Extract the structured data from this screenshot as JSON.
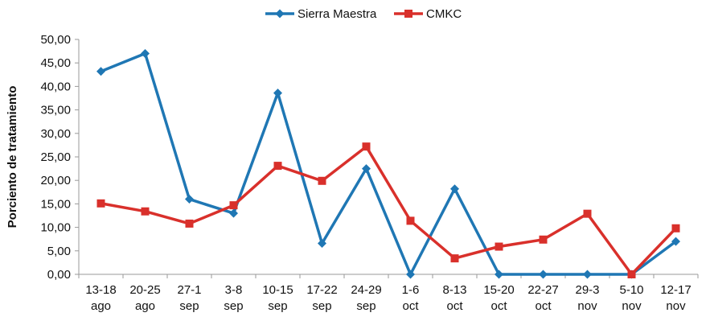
{
  "chart_data": {
    "type": "line",
    "title": "",
    "xlabel": "",
    "ylabel": "Porciento de tratamiento",
    "ylim": [
      0,
      50
    ],
    "ytick_step": 5,
    "ytick_labels": [
      "0,00",
      "5,00",
      "10,00",
      "15,00",
      "20,00",
      "25,00",
      "30,00",
      "35,00",
      "40,00",
      "45,00",
      "50,00"
    ],
    "grid": false,
    "legend_position": "top-center",
    "categories": [
      [
        "13-18",
        "ago"
      ],
      [
        "20-25",
        "ago"
      ],
      [
        "27-1",
        "sep"
      ],
      [
        "3-8",
        "sep"
      ],
      [
        "10-15",
        "sep"
      ],
      [
        "17-22",
        "sep"
      ],
      [
        "24-29",
        "sep"
      ],
      [
        "1-6",
        "oct"
      ],
      [
        "8-13",
        "oct"
      ],
      [
        "15-20",
        "oct"
      ],
      [
        "22-27",
        "oct"
      ],
      [
        "29-3",
        "nov"
      ],
      [
        "5-10",
        "nov"
      ],
      [
        "12-17",
        "nov"
      ]
    ],
    "series": [
      {
        "name": "Sierra Maestra",
        "color": "#1f77b4",
        "marker": "diamond",
        "values": [
          43.2,
          47.0,
          16.0,
          13.0,
          38.6,
          6.6,
          22.5,
          0.0,
          18.2,
          0.0,
          0.0,
          0.0,
          0.0,
          7.0
        ]
      },
      {
        "name": "CMKC",
        "color": "#d9302b",
        "marker": "square",
        "values": [
          15.1,
          13.4,
          10.8,
          14.7,
          23.1,
          19.9,
          27.2,
          11.4,
          3.4,
          5.9,
          7.4,
          12.9,
          0.0,
          9.8
        ]
      }
    ]
  }
}
